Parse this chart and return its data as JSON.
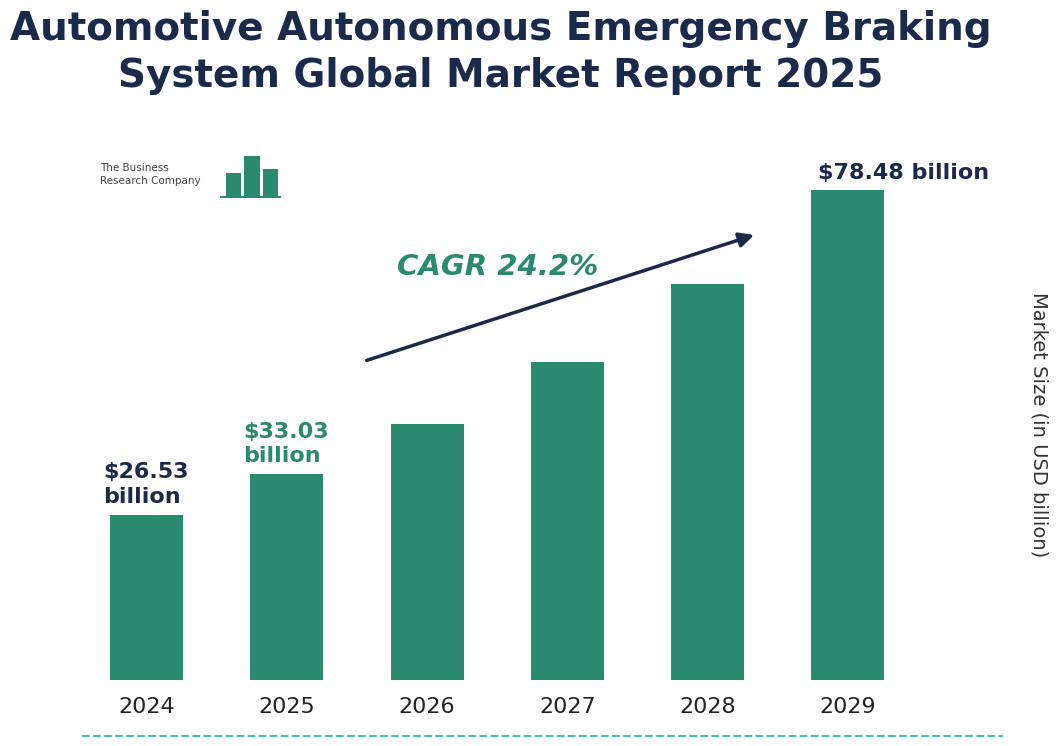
{
  "title": "Automotive Autonomous Emergency Braking\nSystem Global Market Report 2025",
  "categories": [
    "2024",
    "2025",
    "2026",
    "2027",
    "2028",
    "2029"
  ],
  "values": [
    26.53,
    33.03,
    41.03,
    50.97,
    63.35,
    78.48
  ],
  "bar_color": "#2a8a6e",
  "bar_width": 0.52,
  "ylabel": "Market Size (in USD billion)",
  "title_color": "#1a2a4a",
  "title_fontsize": 28,
  "label_fontsize": 14,
  "tick_fontsize": 16,
  "cagr_text": "CAGR 24.2%",
  "cagr_color": "#2a8a6e",
  "arrow_color": "#1a2a4a",
  "background_color": "#ffffff",
  "bottom_line_color": "#4bbfbf",
  "ylim": [
    0,
    90
  ],
  "label_2024": "$26.53\nbillion",
  "label_2025": "$33.03\nbillion",
  "label_2029": "$78.48 billion",
  "label_2024_color": "#1a2a4a",
  "label_2025_color": "#2a8a6e",
  "label_2029_color": "#1a2a4a"
}
